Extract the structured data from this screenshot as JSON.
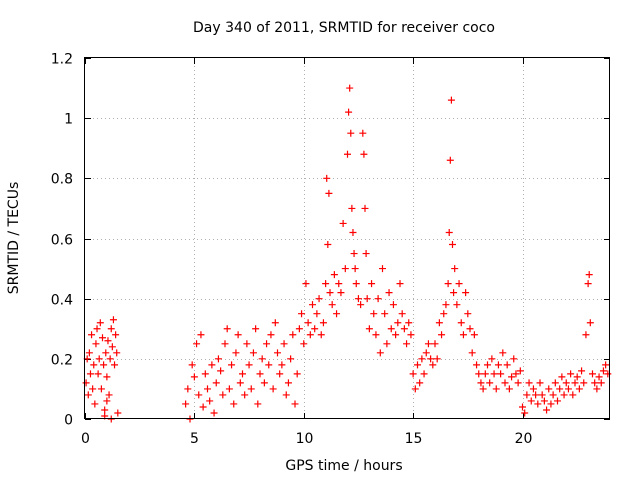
{
  "chart_data": {
    "type": "scatter",
    "title": "Day 340 of 2011, SRMTID for receiver coco",
    "xlabel": "GPS time / hours",
    "ylabel": "SRMTID / TECUs",
    "xlim": [
      0,
      24
    ],
    "ylim": [
      0,
      1.2
    ],
    "xticks": [
      0,
      5,
      10,
      15,
      20
    ],
    "xtick_labels": [
      "0",
      "5",
      "10",
      "15",
      "20"
    ],
    "yticks": [
      0,
      0.2,
      0.4,
      0.6,
      0.8,
      1,
      1.2
    ],
    "ytick_labels": [
      "0",
      "0.2",
      "0.4",
      "0.6",
      "0.8",
      "1",
      "1.2"
    ],
    "grid": true,
    "marker": "+",
    "series": [
      {
        "name": "SRMTID",
        "color": "#ff0000",
        "x": [
          0.05,
          0.1,
          0.15,
          0.2,
          0.25,
          0.3,
          0.35,
          0.4,
          0.45,
          0.5,
          0.55,
          0.6,
          0.65,
          0.7,
          0.75,
          0.8,
          0.85,
          0.9,
          0.95,
          1.0,
          1.05,
          1.1,
          1.15,
          1.2,
          1.25,
          1.3,
          1.35,
          1.4,
          1.45,
          1.5,
          0.9,
          1.0,
          1.2,
          4.6,
          4.7,
          4.8,
          4.9,
          5.0,
          5.1,
          5.2,
          5.3,
          5.4,
          5.5,
          5.6,
          5.7,
          5.8,
          5.9,
          6.0,
          6.1,
          6.2,
          6.3,
          6.4,
          6.5,
          6.6,
          6.7,
          6.8,
          6.9,
          7.0,
          7.1,
          7.2,
          7.3,
          7.4,
          7.5,
          7.6,
          7.7,
          7.8,
          7.9,
          8.0,
          8.1,
          8.2,
          8.3,
          8.4,
          8.5,
          8.6,
          8.7,
          8.8,
          8.9,
          9.0,
          9.1,
          9.2,
          9.3,
          9.4,
          9.5,
          9.6,
          9.7,
          9.8,
          9.9,
          10.0,
          10.1,
          10.2,
          10.3,
          10.4,
          10.5,
          10.6,
          10.7,
          10.8,
          10.9,
          11.0,
          11.05,
          11.1,
          11.15,
          11.2,
          11.3,
          11.4,
          11.5,
          11.6,
          11.7,
          11.8,
          11.9,
          12.0,
          12.05,
          12.1,
          12.15,
          12.2,
          12.25,
          12.3,
          12.35,
          12.4,
          12.5,
          12.6,
          12.7,
          12.75,
          12.8,
          12.85,
          12.9,
          13.0,
          13.1,
          13.2,
          13.3,
          13.4,
          13.5,
          13.6,
          13.7,
          13.8,
          13.9,
          14.0,
          14.1,
          14.2,
          14.3,
          14.4,
          14.5,
          14.6,
          14.7,
          14.8,
          14.9,
          15.0,
          15.1,
          15.2,
          15.3,
          15.4,
          15.5,
          15.6,
          15.7,
          15.8,
          15.9,
          16.0,
          16.1,
          16.2,
          16.3,
          16.4,
          16.5,
          16.6,
          16.65,
          16.7,
          16.75,
          16.8,
          16.85,
          16.9,
          17.0,
          17.1,
          17.2,
          17.3,
          17.4,
          17.5,
          17.6,
          17.7,
          17.8,
          17.9,
          18.0,
          18.1,
          18.2,
          18.3,
          18.4,
          18.5,
          18.6,
          18.7,
          18.8,
          18.9,
          19.0,
          19.1,
          19.2,
          19.3,
          19.4,
          19.5,
          19.6,
          19.7,
          19.8,
          19.9,
          20.0,
          20.1,
          20.2,
          20.3,
          20.4,
          20.5,
          20.6,
          20.7,
          20.8,
          20.9,
          21.0,
          21.1,
          21.2,
          21.3,
          21.4,
          21.5,
          21.6,
          21.7,
          21.8,
          21.9,
          22.0,
          22.1,
          22.2,
          22.3,
          22.4,
          22.5,
          22.6,
          22.7,
          22.8,
          22.9,
          23.0,
          23.05,
          23.1,
          23.2,
          23.3,
          23.4,
          23.5,
          23.6,
          23.7,
          23.8,
          23.9
        ],
        "y": [
          0.12,
          0.2,
          0.08,
          0.22,
          0.15,
          0.28,
          0.1,
          0.18,
          0.05,
          0.25,
          0.3,
          0.15,
          0.2,
          0.32,
          0.1,
          0.27,
          0.18,
          0.03,
          0.22,
          0.14,
          0.26,
          0.08,
          0.2,
          0.3,
          0.24,
          0.33,
          0.18,
          0.28,
          0.22,
          0.02,
          0.01,
          0.06,
          0.0,
          0.05,
          0.1,
          0.0,
          0.18,
          0.14,
          0.25,
          0.08,
          0.28,
          0.04,
          0.15,
          0.1,
          0.06,
          0.18,
          0.02,
          0.12,
          0.2,
          0.16,
          0.08,
          0.25,
          0.3,
          0.1,
          0.18,
          0.05,
          0.22,
          0.28,
          0.12,
          0.15,
          0.08,
          0.25,
          0.18,
          0.1,
          0.22,
          0.3,
          0.05,
          0.15,
          0.2,
          0.12,
          0.25,
          0.18,
          0.28,
          0.1,
          0.32,
          0.22,
          0.15,
          0.18,
          0.25,
          0.08,
          0.12,
          0.2,
          0.28,
          0.05,
          0.15,
          0.3,
          0.35,
          0.25,
          0.45,
          0.32,
          0.28,
          0.38,
          0.3,
          0.35,
          0.4,
          0.28,
          0.32,
          0.45,
          0.8,
          0.58,
          0.75,
          0.42,
          0.38,
          0.48,
          0.35,
          0.45,
          0.42,
          0.65,
          0.5,
          0.88,
          1.02,
          1.1,
          0.95,
          0.7,
          0.62,
          0.55,
          0.5,
          0.45,
          0.4,
          0.38,
          0.95,
          0.88,
          0.7,
          0.55,
          0.4,
          0.3,
          0.45,
          0.35,
          0.28,
          0.4,
          0.22,
          0.5,
          0.35,
          0.25,
          0.42,
          0.3,
          0.38,
          0.28,
          0.32,
          0.45,
          0.35,
          0.3,
          0.25,
          0.32,
          0.28,
          0.15,
          0.1,
          0.18,
          0.12,
          0.2,
          0.15,
          0.22,
          0.25,
          0.2,
          0.18,
          0.25,
          0.2,
          0.32,
          0.28,
          0.35,
          0.38,
          0.45,
          0.62,
          0.86,
          1.06,
          0.58,
          0.42,
          0.5,
          0.38,
          0.45,
          0.32,
          0.28,
          0.42,
          0.35,
          0.3,
          0.22,
          0.28,
          0.18,
          0.15,
          0.12,
          0.1,
          0.15,
          0.18,
          0.12,
          0.2,
          0.15,
          0.1,
          0.18,
          0.15,
          0.22,
          0.12,
          0.18,
          0.1,
          0.14,
          0.2,
          0.15,
          0.12,
          0.16,
          0.04,
          0.02,
          0.08,
          0.12,
          0.06,
          0.1,
          0.08,
          0.05,
          0.12,
          0.08,
          0.06,
          0.03,
          0.1,
          0.05,
          0.08,
          0.12,
          0.06,
          0.1,
          0.14,
          0.08,
          0.12,
          0.1,
          0.15,
          0.08,
          0.12,
          0.14,
          0.1,
          0.16,
          0.12,
          0.28,
          0.45,
          0.48,
          0.32,
          0.15,
          0.12,
          0.1,
          0.14,
          0.12,
          0.16,
          0.18,
          0.15
        ]
      }
    ]
  }
}
